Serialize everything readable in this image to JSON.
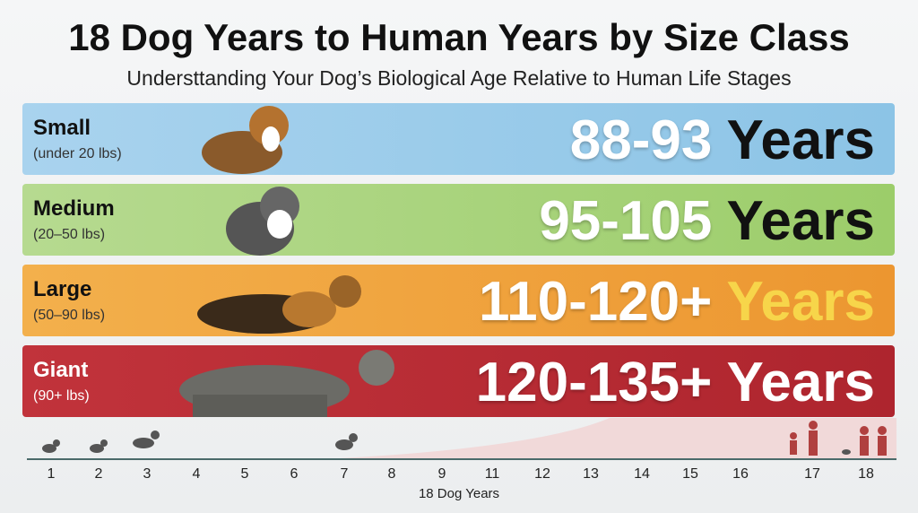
{
  "header": {
    "title": "18 Dog Years to Human Years by Size Class",
    "subtitle": "Understtanding Your Dog’s Biological Age Relative to Human Life Stages"
  },
  "rows": [
    {
      "label": "Small",
      "sublabel": "(under 20 lbs)",
      "range": "88-93",
      "unit": "Years"
    },
    {
      "label": "Medium",
      "sublabel": "(20–50 lbs)",
      "range": "95-105",
      "unit": "Years"
    },
    {
      "label": "Large",
      "sublabel": "(50–90 lbs)",
      "range": "110-120+",
      "unit": "Years"
    },
    {
      "label": "Giant",
      "sublabel": "(90+ lbs)",
      "range": "120-135+",
      "unit": "Years"
    }
  ],
  "axis": {
    "ticks": [
      "1",
      "2",
      "3",
      "4",
      "5",
      "6",
      "7",
      "8",
      "9",
      "11",
      "12",
      "13",
      "14",
      "15",
      "16",
      "17",
      "18"
    ],
    "label": "18 Dog Years"
  }
}
